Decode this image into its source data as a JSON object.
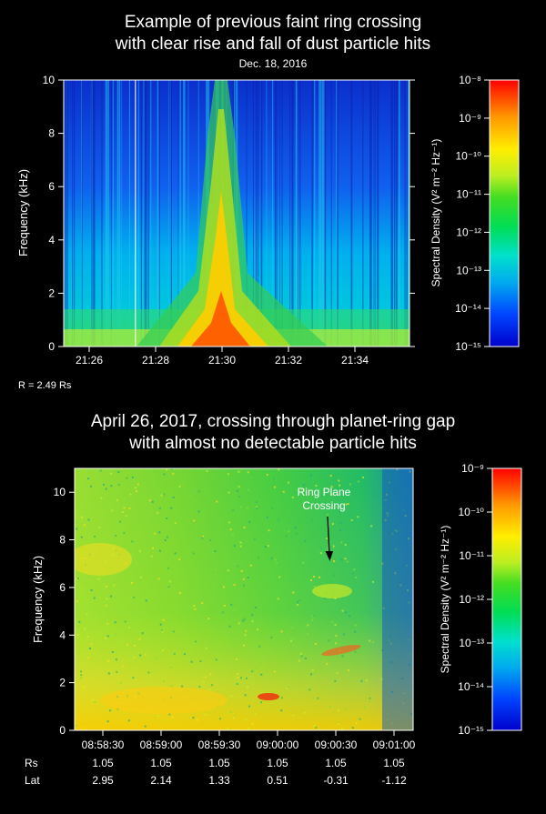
{
  "chart_data": [
    {
      "type": "heatmap",
      "title_lines": [
        "Example of previous faint ring crossing",
        "with clear rise and fall of dust particle hits"
      ],
      "subtitle": "Dec. 18, 2016",
      "ylabel": "Frequency (kHz)",
      "ylim": [
        0,
        10
      ],
      "y_ticks": [
        "0",
        "2",
        "4",
        "6",
        "8",
        "10"
      ],
      "x_ticks": [
        "21:26",
        "21:28",
        "21:30",
        "21:32",
        "21:34"
      ],
      "colorbar": {
        "label": "Spectral Density (V² m⁻² Hz⁻¹)",
        "ticks": [
          "10⁻¹⁵",
          "10⁻¹⁴",
          "10⁻¹³",
          "10⁻¹²",
          "10⁻¹¹",
          "10⁻¹⁰",
          "10⁻⁹",
          "10⁻⁸"
        ],
        "log_range": [
          -15,
          -8
        ]
      },
      "note": "R = 2.49 Rs"
    },
    {
      "type": "heatmap",
      "title_lines": [
        "April 26, 2017, crossing through planet-ring gap",
        "with almost no detectable particle hits"
      ],
      "ylabel": "Frequency (kHz)",
      "ylim": [
        0,
        11
      ],
      "y_ticks": [
        "0",
        "2",
        "4",
        "6",
        "8",
        "10"
      ],
      "x_ticks": [
        "08:58:30",
        "08:59:00",
        "08:59:30",
        "09:00:00",
        "09:00:30",
        "09:01:00"
      ],
      "annotation": {
        "line1": "Ring Plane",
        "line2": "Crossing"
      },
      "colorbar": {
        "label": "Spectral Density (V² m⁻² Hz⁻¹)",
        "ticks": [
          "10⁻¹⁵",
          "10⁻¹⁴",
          "10⁻¹³",
          "10⁻¹²",
          "10⁻¹¹",
          "10⁻¹⁰",
          "10⁻⁹"
        ],
        "log_range": [
          -15,
          -9
        ]
      },
      "rows": [
        {
          "label": "Rs",
          "values": [
            "1.05",
            "1.05",
            "1.05",
            "1.05",
            "1.05",
            "1.05"
          ]
        },
        {
          "label": "Lat",
          "values": [
            "2.95",
            "2.14",
            "1.33",
            "0.51",
            "-0.31",
            "-1.12"
          ]
        }
      ]
    }
  ]
}
